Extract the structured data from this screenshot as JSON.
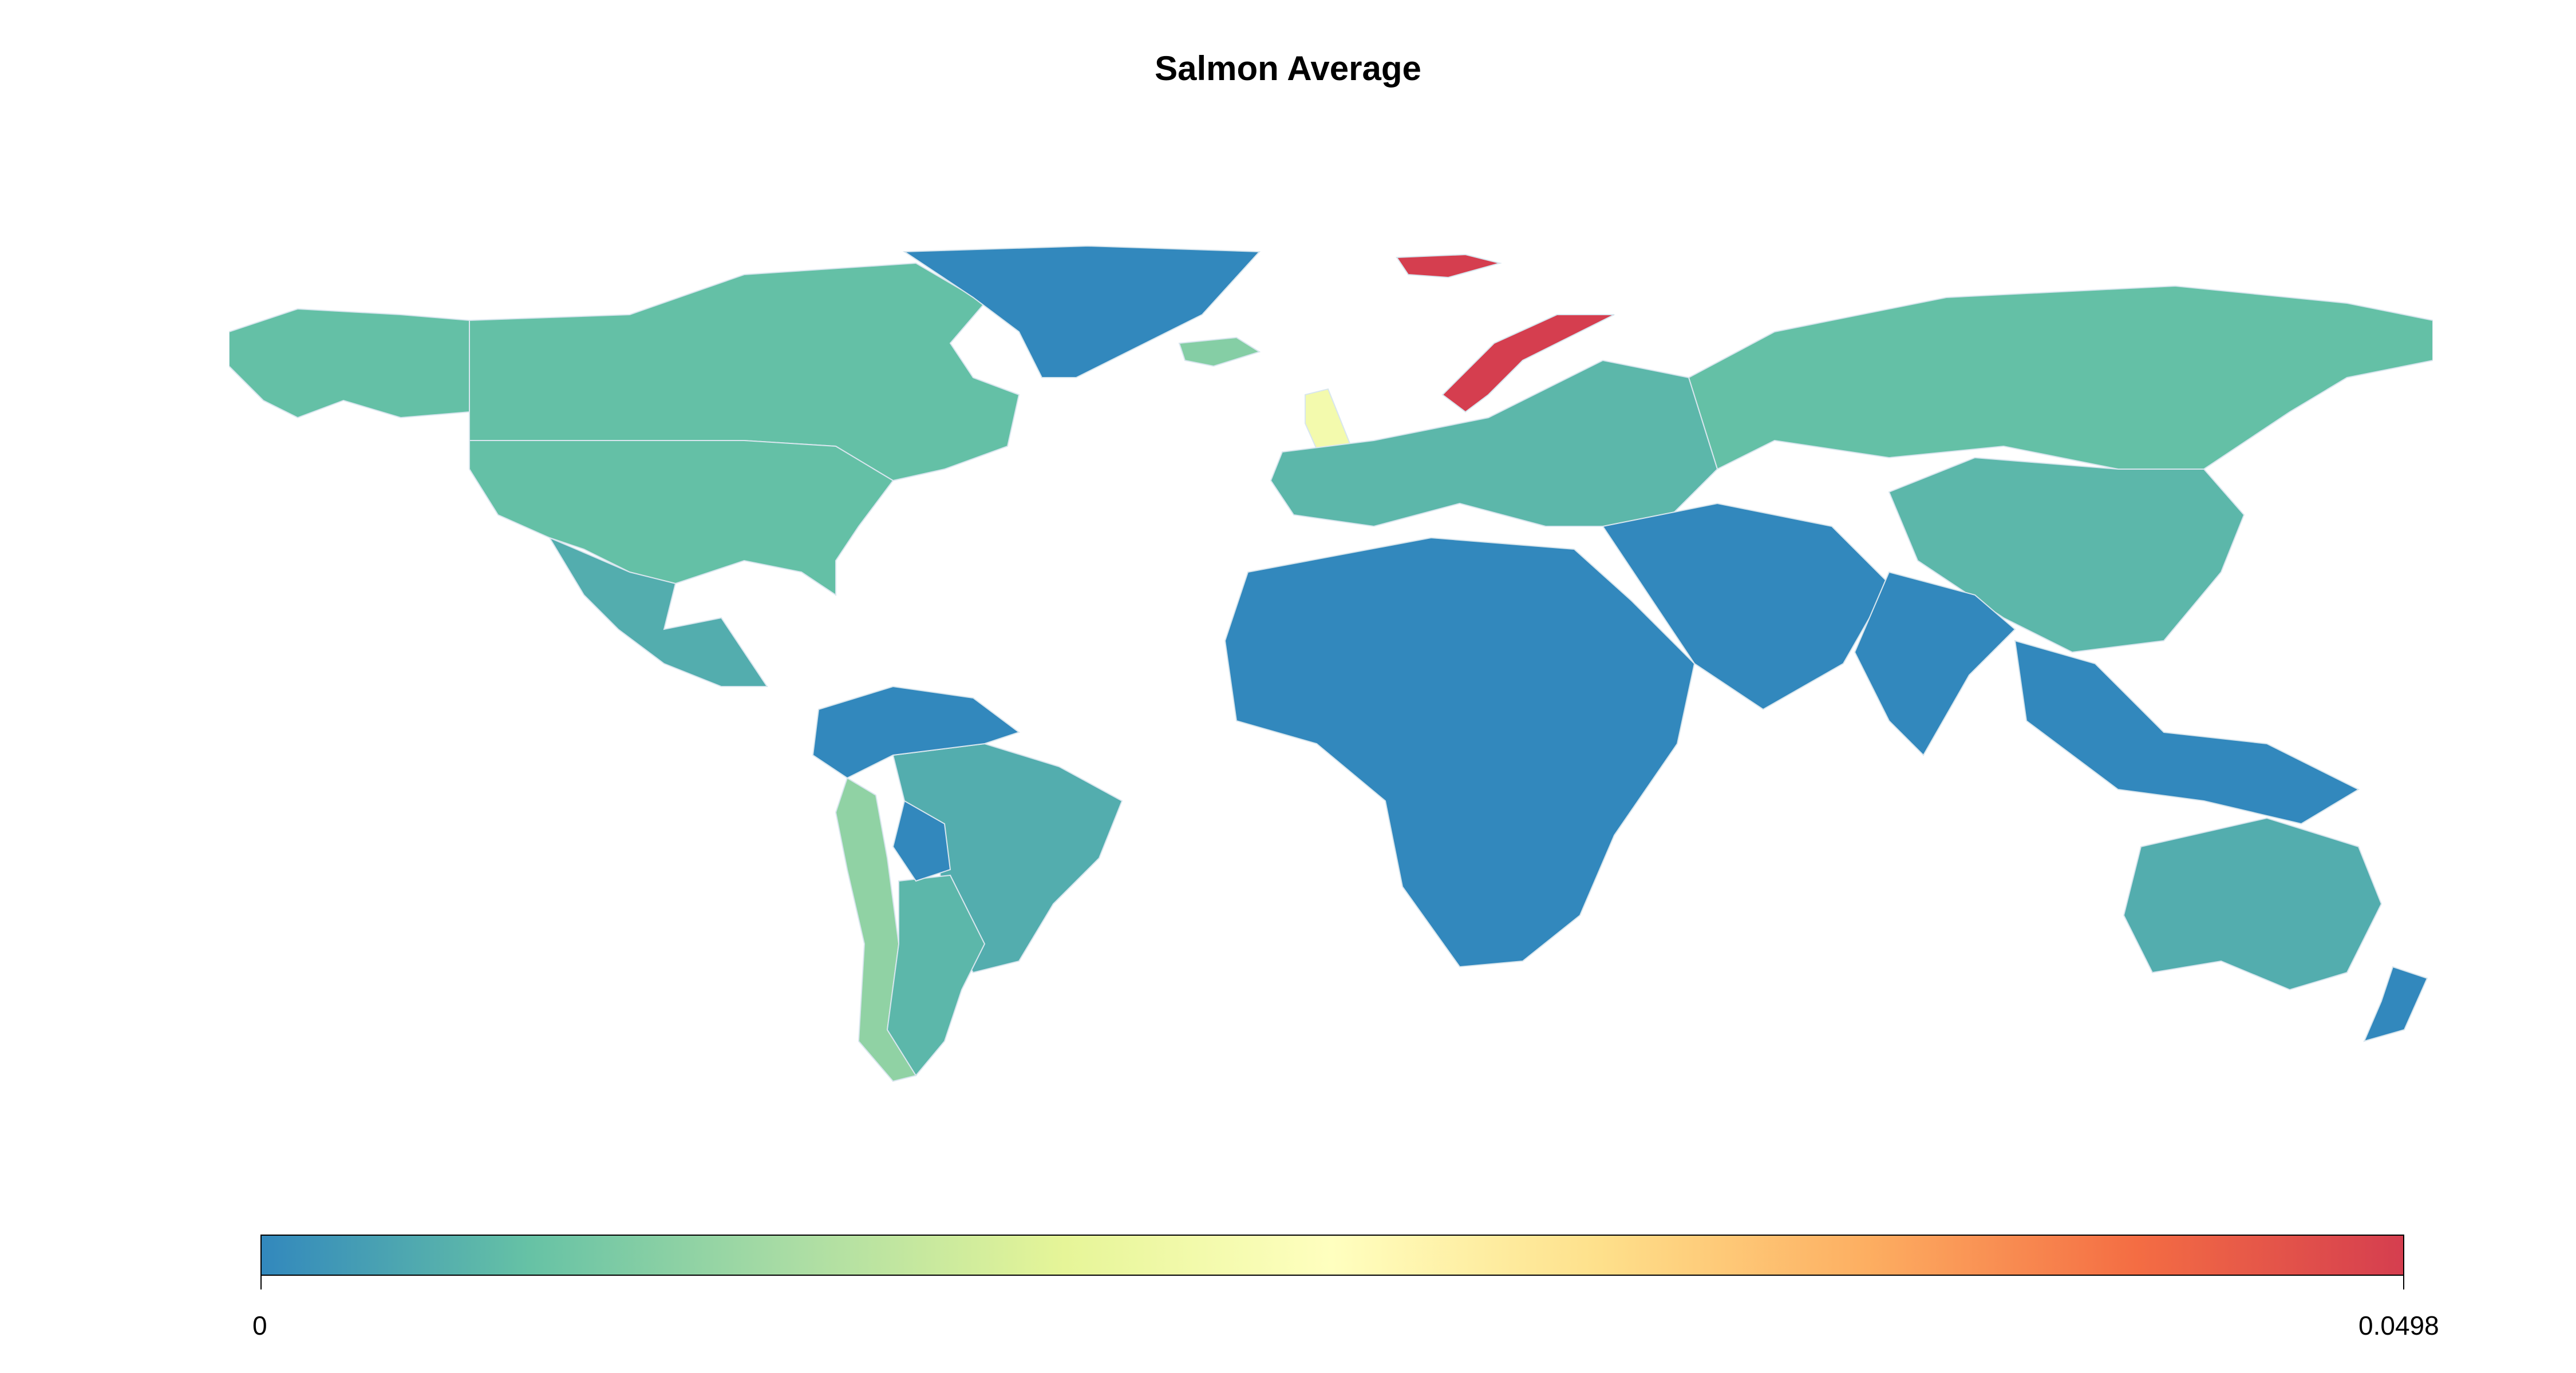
{
  "title": "Salmon Average",
  "legend": {
    "min_label": "0",
    "max_label": "0.0498",
    "min": 0,
    "max": 0.0498,
    "colors": [
      "#3288bd",
      "#66c2a5",
      "#abdda4",
      "#e6f598",
      "#ffffbf",
      "#fee08b",
      "#fdae61",
      "#f46d43",
      "#d53e4f"
    ]
  },
  "regions": [
    {
      "name": "Norway",
      "value": 0.0498
    },
    {
      "name": "Svalbard",
      "value": 0.0498
    },
    {
      "name": "United Kingdom",
      "value": 0.022
    },
    {
      "name": "Chile",
      "value": 0.01
    },
    {
      "name": "Iceland",
      "value": 0.009
    },
    {
      "name": "Canada",
      "value": 0.006
    },
    {
      "name": "United States",
      "value": 0.006
    },
    {
      "name": "Alaska",
      "value": 0.006
    },
    {
      "name": "Russia",
      "value": 0.006
    },
    {
      "name": "Australia",
      "value": 0.004
    },
    {
      "name": "Brazil",
      "value": 0.004
    },
    {
      "name": "Argentina",
      "value": 0.005
    },
    {
      "name": "China",
      "value": 0.005
    },
    {
      "name": "Mexico",
      "value": 0.004
    },
    {
      "name": "Western Europe",
      "value": 0.005
    },
    {
      "name": "Greenland",
      "value": 0
    },
    {
      "name": "Africa",
      "value": 0
    },
    {
      "name": "Middle East",
      "value": 0
    },
    {
      "name": "South Asia",
      "value": 0
    },
    {
      "name": "Southeast Asia",
      "value": 0
    },
    {
      "name": "New Zealand",
      "value": 0
    },
    {
      "name": "Northern South America",
      "value": 0
    },
    {
      "name": "Bolivia",
      "value": 0
    }
  ]
}
